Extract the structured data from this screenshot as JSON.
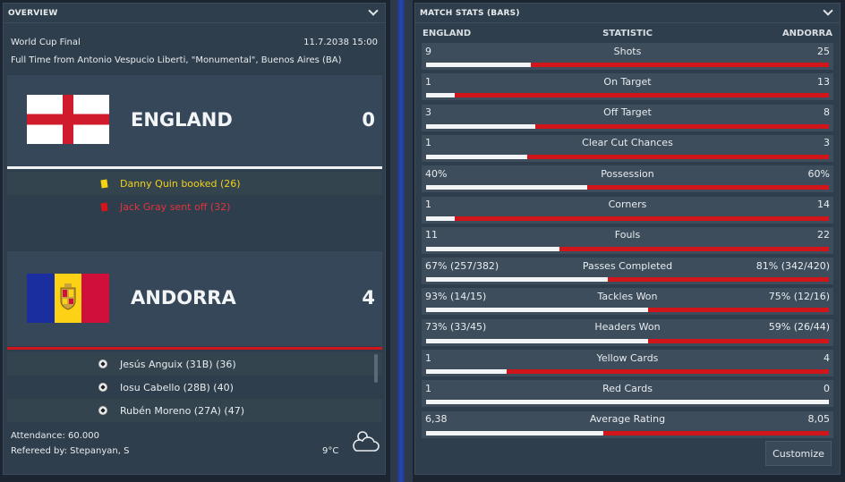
{
  "overview": {
    "title": "OVERVIEW",
    "competition": "World Cup Final",
    "datetime": "11.7.2038 15:00",
    "venue": "Full Time from Antonio Vespucio Liberti, \"Monumental\", Buenos Aires (BA)",
    "home": {
      "name": "ENGLAND",
      "score": "0",
      "flag_icon": "england-flag-icon",
      "line_color": "#f0f2f4",
      "events": [
        {
          "icon": "yellow-card-icon",
          "text": "Danny Quin booked (26)",
          "color": "#f1d21b"
        },
        {
          "icon": "red-card-icon",
          "text": "Jack Gray sent off (32)",
          "color": "#e0343a"
        }
      ]
    },
    "away": {
      "name": "ANDORRA",
      "score": "4",
      "flag_icon": "andorra-flag-icon",
      "line_color": "#d0151b",
      "events": [
        {
          "icon": "football-icon",
          "text": "Jesús Anguix (31B) (36)"
        },
        {
          "icon": "football-icon",
          "text": "Iosu Cabello (28B) (40)"
        },
        {
          "icon": "football-icon",
          "text": "Rubén Moreno (27A) (47)"
        }
      ]
    },
    "attendance": "Attendance: 60.000",
    "referee": "Refereed by: Stepanyan, S",
    "temperature": "9°C",
    "weather_icon": "cloudy-weather-icon"
  },
  "stats": {
    "title": "MATCH STATS (BARS)",
    "col_home": "ENGLAND",
    "col_stat": "STATISTIC",
    "col_away": "ANDORRA",
    "rows": [
      {
        "label": "Shots",
        "home": "9",
        "away": "25",
        "home_share": 0.26
      },
      {
        "label": "On Target",
        "home": "1",
        "away": "13",
        "home_share": 0.07
      },
      {
        "label": "Off Target",
        "home": "3",
        "away": "8",
        "home_share": 0.27
      },
      {
        "label": "Clear Cut Chances",
        "home": "1",
        "away": "3",
        "home_share": 0.25
      },
      {
        "label": "Possession",
        "home": "40%",
        "away": "60%",
        "home_share": 0.4
      },
      {
        "label": "Corners",
        "home": "1",
        "away": "14",
        "home_share": 0.07
      },
      {
        "label": "Fouls",
        "home": "11",
        "away": "22",
        "home_share": 0.33
      },
      {
        "label": "Passes Completed",
        "home": "67% (257/382)",
        "away": "81% (342/420)",
        "home_share": 0.45
      },
      {
        "label": "Tackles Won",
        "home": "93% (14/15)",
        "away": "75% (12/16)",
        "home_share": 0.55
      },
      {
        "label": "Headers Won",
        "home": "73% (33/45)",
        "away": "59% (26/44)",
        "home_share": 0.55
      },
      {
        "label": "Yellow Cards",
        "home": "1",
        "away": "4",
        "home_share": 0.2
      },
      {
        "label": "Red Cards",
        "home": "1",
        "away": "0",
        "home_share": 1.0
      },
      {
        "label": "Average Rating",
        "home": "6,38",
        "away": "8,05",
        "home_share": 0.44
      }
    ],
    "customize_label": "Customize"
  }
}
